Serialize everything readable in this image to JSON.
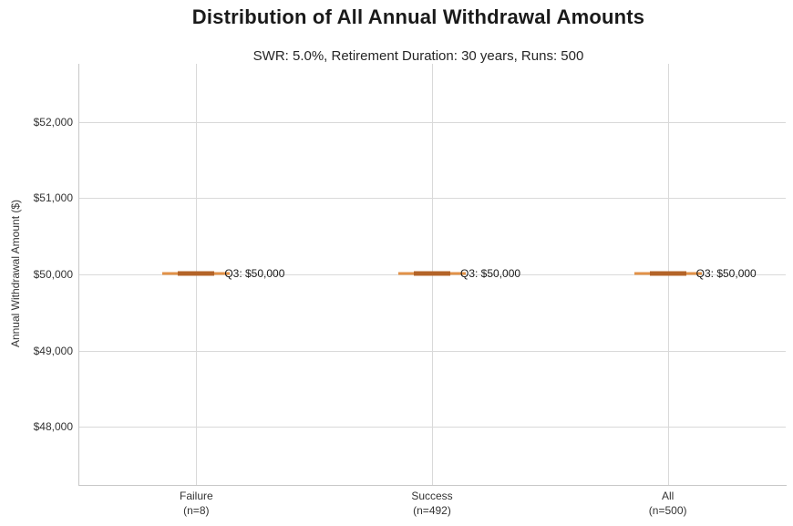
{
  "header": {
    "title": "Distribution of All Annual Withdrawal Amounts",
    "subtitle": "SWR: 5.0%, Retirement Duration: 30 years, Runs: 500"
  },
  "chart_data": {
    "type": "box",
    "title": "Distribution of All Annual Withdrawal Amounts",
    "subtitle": "SWR: 5.0%, Retirement Duration: 30 years, Runs: 500",
    "xlabel": "",
    "ylabel": "Annual Withdrawal Amount ($)",
    "grid": true,
    "legend": "none",
    "ylim": [
      47240,
      52760
    ],
    "yticks": [
      {
        "value": 48000,
        "label": "$48,000"
      },
      {
        "value": 49000,
        "label": "$49,000"
      },
      {
        "value": 50000,
        "label": "$50,000"
      },
      {
        "value": 51000,
        "label": "$51,000"
      },
      {
        "value": 52000,
        "label": "$52,000"
      }
    ],
    "categories": [
      {
        "label": "Failure",
        "sublabel": "(n=8)"
      },
      {
        "label": "Success",
        "sublabel": "(n=492)"
      },
      {
        "label": "All",
        "sublabel": "(n=500)"
      }
    ],
    "series": [
      {
        "category": "Failure",
        "n": 8,
        "min": 50000,
        "q1": 50000,
        "median": 50000,
        "q3": 50000,
        "max": 50000,
        "annotation": "Q3: $50,000"
      },
      {
        "category": "Success",
        "n": 492,
        "min": 50000,
        "q1": 50000,
        "median": 50000,
        "q3": 50000,
        "max": 50000,
        "annotation": "Q3: $50,000"
      },
      {
        "category": "All",
        "n": 500,
        "min": 50000,
        "q1": 50000,
        "median": 50000,
        "q3": 50000,
        "max": 50000,
        "annotation": "Q3: $50,000"
      }
    ],
    "colors": {
      "whisker": "#e29248",
      "box": "#b46428",
      "gridline": "#d9d9d9",
      "spine": "#c8c8c8",
      "text": "#333333"
    }
  }
}
